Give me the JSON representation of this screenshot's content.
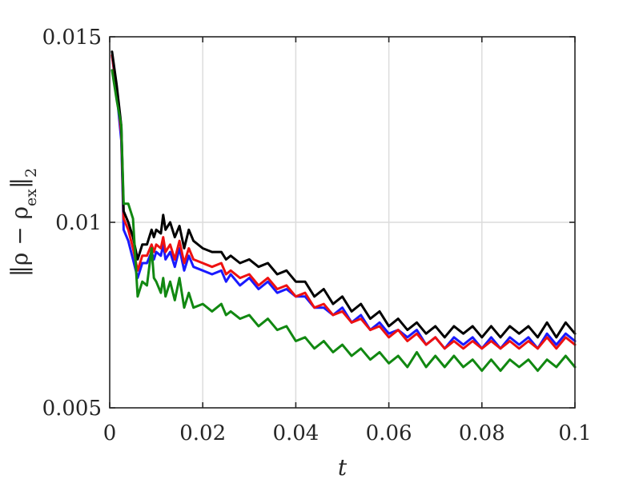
{
  "chart_data": {
    "type": "line",
    "title": "",
    "xlabel": "t",
    "ylabel": "||ρ − ρ_ex||_2",
    "ylabel_parts": {
      "open": "‖ρ − ρ",
      "sub": "ex",
      "close": "‖",
      "sub2": "2"
    },
    "xlim": [
      0,
      0.1
    ],
    "ylim": [
      0.005,
      0.015
    ],
    "x_ticks": [
      0,
      0.02,
      0.04,
      0.06,
      0.08,
      0.1
    ],
    "x_tick_labels": [
      "0",
      "0.02",
      "0.04",
      "0.06",
      "0.08",
      "0.1"
    ],
    "y_ticks": [
      0.005,
      0.01,
      0.015
    ],
    "y_tick_labels": [
      "0.005",
      "0.01",
      "0.015"
    ],
    "grid": true,
    "legend": "none",
    "series": [
      {
        "color": "#1a1aff",
        "x": [
          0.0005,
          0.0015,
          0.0025,
          0.003,
          0.004,
          0.005,
          0.006,
          0.007,
          0.008,
          0.009,
          0.0095,
          0.01,
          0.011,
          0.0115,
          0.012,
          0.013,
          0.014,
          0.015,
          0.016,
          0.017,
          0.018,
          0.02,
          0.022,
          0.024,
          0.025,
          0.026,
          0.028,
          0.03,
          0.032,
          0.034,
          0.036,
          0.038,
          0.04,
          0.042,
          0.044,
          0.046,
          0.048,
          0.05,
          0.052,
          0.054,
          0.056,
          0.058,
          0.06,
          0.062,
          0.064,
          0.066,
          0.068,
          0.07,
          0.072,
          0.074,
          0.076,
          0.078,
          0.08,
          0.082,
          0.084,
          0.086,
          0.088,
          0.09,
          0.092,
          0.094,
          0.096,
          0.098,
          0.1
        ],
        "y": [
          0.0145,
          0.0135,
          0.0122,
          0.0098,
          0.0095,
          0.009,
          0.0085,
          0.0089,
          0.0089,
          0.0092,
          0.009,
          0.0092,
          0.0091,
          0.0094,
          0.009,
          0.0092,
          0.0088,
          0.0093,
          0.0087,
          0.0091,
          0.0088,
          0.0087,
          0.0086,
          0.0087,
          0.0084,
          0.0086,
          0.0083,
          0.0085,
          0.0082,
          0.0084,
          0.0081,
          0.0082,
          0.008,
          0.008,
          0.0077,
          0.0077,
          0.0075,
          0.0077,
          0.0073,
          0.0075,
          0.0071,
          0.0073,
          0.007,
          0.0071,
          0.0069,
          0.0071,
          0.0067,
          0.0069,
          0.0066,
          0.0069,
          0.0067,
          0.0069,
          0.0066,
          0.0069,
          0.0066,
          0.0069,
          0.0067,
          0.0069,
          0.0066,
          0.007,
          0.0067,
          0.007,
          0.0068
        ]
      },
      {
        "color": "#ee1111",
        "x": [
          0.0005,
          0.0015,
          0.0025,
          0.003,
          0.004,
          0.005,
          0.006,
          0.007,
          0.008,
          0.009,
          0.0095,
          0.01,
          0.011,
          0.0115,
          0.012,
          0.013,
          0.014,
          0.015,
          0.016,
          0.017,
          0.018,
          0.02,
          0.022,
          0.024,
          0.025,
          0.026,
          0.028,
          0.03,
          0.032,
          0.034,
          0.036,
          0.038,
          0.04,
          0.042,
          0.044,
          0.046,
          0.048,
          0.05,
          0.052,
          0.054,
          0.056,
          0.058,
          0.06,
          0.062,
          0.064,
          0.066,
          0.068,
          0.07,
          0.072,
          0.074,
          0.076,
          0.078,
          0.08,
          0.082,
          0.084,
          0.086,
          0.088,
          0.09,
          0.092,
          0.094,
          0.096,
          0.098,
          0.1
        ],
        "y": [
          0.0145,
          0.0136,
          0.0124,
          0.0101,
          0.0098,
          0.0093,
          0.0087,
          0.0091,
          0.0091,
          0.0094,
          0.0092,
          0.0094,
          0.0093,
          0.0096,
          0.0092,
          0.0094,
          0.009,
          0.0095,
          0.0089,
          0.0093,
          0.009,
          0.0089,
          0.0088,
          0.0089,
          0.0086,
          0.0087,
          0.0085,
          0.0086,
          0.0083,
          0.0085,
          0.0082,
          0.0083,
          0.008,
          0.0081,
          0.0077,
          0.0078,
          0.0075,
          0.0076,
          0.0073,
          0.0074,
          0.0071,
          0.0072,
          0.0069,
          0.0071,
          0.0068,
          0.007,
          0.0067,
          0.0069,
          0.0066,
          0.0068,
          0.0066,
          0.0068,
          0.0066,
          0.0068,
          0.0066,
          0.0068,
          0.0066,
          0.0068,
          0.0066,
          0.0069,
          0.0066,
          0.0069,
          0.0067
        ]
      },
      {
        "color": "#000000",
        "x": [
          0.0005,
          0.0015,
          0.0025,
          0.003,
          0.004,
          0.005,
          0.006,
          0.007,
          0.008,
          0.009,
          0.0095,
          0.01,
          0.011,
          0.0115,
          0.012,
          0.013,
          0.014,
          0.015,
          0.016,
          0.017,
          0.018,
          0.02,
          0.022,
          0.024,
          0.025,
          0.026,
          0.028,
          0.03,
          0.032,
          0.034,
          0.036,
          0.038,
          0.04,
          0.042,
          0.044,
          0.046,
          0.048,
          0.05,
          0.052,
          0.054,
          0.056,
          0.058,
          0.06,
          0.062,
          0.064,
          0.066,
          0.068,
          0.07,
          0.072,
          0.074,
          0.076,
          0.078,
          0.08,
          0.082,
          0.084,
          0.086,
          0.088,
          0.09,
          0.092,
          0.094,
          0.096,
          0.098,
          0.1
        ],
        "y": [
          0.0146,
          0.0137,
          0.0126,
          0.0103,
          0.01,
          0.0096,
          0.009,
          0.0094,
          0.0094,
          0.0098,
          0.0096,
          0.0098,
          0.0097,
          0.0102,
          0.0098,
          0.01,
          0.0096,
          0.0099,
          0.0093,
          0.0098,
          0.0095,
          0.0093,
          0.0092,
          0.0092,
          0.009,
          0.0091,
          0.0089,
          0.009,
          0.0088,
          0.0089,
          0.0086,
          0.0087,
          0.0084,
          0.0084,
          0.008,
          0.0082,
          0.0078,
          0.008,
          0.0076,
          0.0078,
          0.0074,
          0.0076,
          0.0072,
          0.0074,
          0.0071,
          0.0073,
          0.007,
          0.0072,
          0.0069,
          0.0072,
          0.007,
          0.0072,
          0.0069,
          0.0072,
          0.0069,
          0.0072,
          0.007,
          0.0072,
          0.0069,
          0.0073,
          0.0069,
          0.0073,
          0.007
        ]
      },
      {
        "color": "#118811",
        "x": [
          0.0005,
          0.0015,
          0.0025,
          0.003,
          0.004,
          0.005,
          0.006,
          0.007,
          0.008,
          0.009,
          0.0095,
          0.01,
          0.011,
          0.0115,
          0.012,
          0.013,
          0.014,
          0.015,
          0.016,
          0.017,
          0.018,
          0.02,
          0.022,
          0.024,
          0.025,
          0.026,
          0.028,
          0.03,
          0.032,
          0.034,
          0.036,
          0.038,
          0.04,
          0.042,
          0.044,
          0.046,
          0.048,
          0.05,
          0.052,
          0.054,
          0.056,
          0.058,
          0.06,
          0.062,
          0.064,
          0.066,
          0.068,
          0.07,
          0.072,
          0.074,
          0.076,
          0.078,
          0.08,
          0.082,
          0.084,
          0.086,
          0.088,
          0.09,
          0.092,
          0.094,
          0.096,
          0.098,
          0.1
        ],
        "y": [
          0.0141,
          0.0133,
          0.0126,
          0.0105,
          0.0105,
          0.0101,
          0.008,
          0.0084,
          0.0083,
          0.0093,
          0.0085,
          0.0084,
          0.0081,
          0.0085,
          0.008,
          0.0084,
          0.0079,
          0.0085,
          0.0077,
          0.0081,
          0.0077,
          0.0078,
          0.0076,
          0.0078,
          0.0075,
          0.0076,
          0.0074,
          0.0075,
          0.0072,
          0.0074,
          0.0071,
          0.0072,
          0.0068,
          0.0069,
          0.0066,
          0.0068,
          0.0065,
          0.0067,
          0.0064,
          0.0066,
          0.0063,
          0.0065,
          0.0062,
          0.0064,
          0.0061,
          0.0065,
          0.0061,
          0.0064,
          0.0061,
          0.0064,
          0.0061,
          0.0063,
          0.006,
          0.0063,
          0.006,
          0.0063,
          0.0061,
          0.0063,
          0.006,
          0.0063,
          0.0061,
          0.0064,
          0.0061
        ]
      }
    ]
  }
}
